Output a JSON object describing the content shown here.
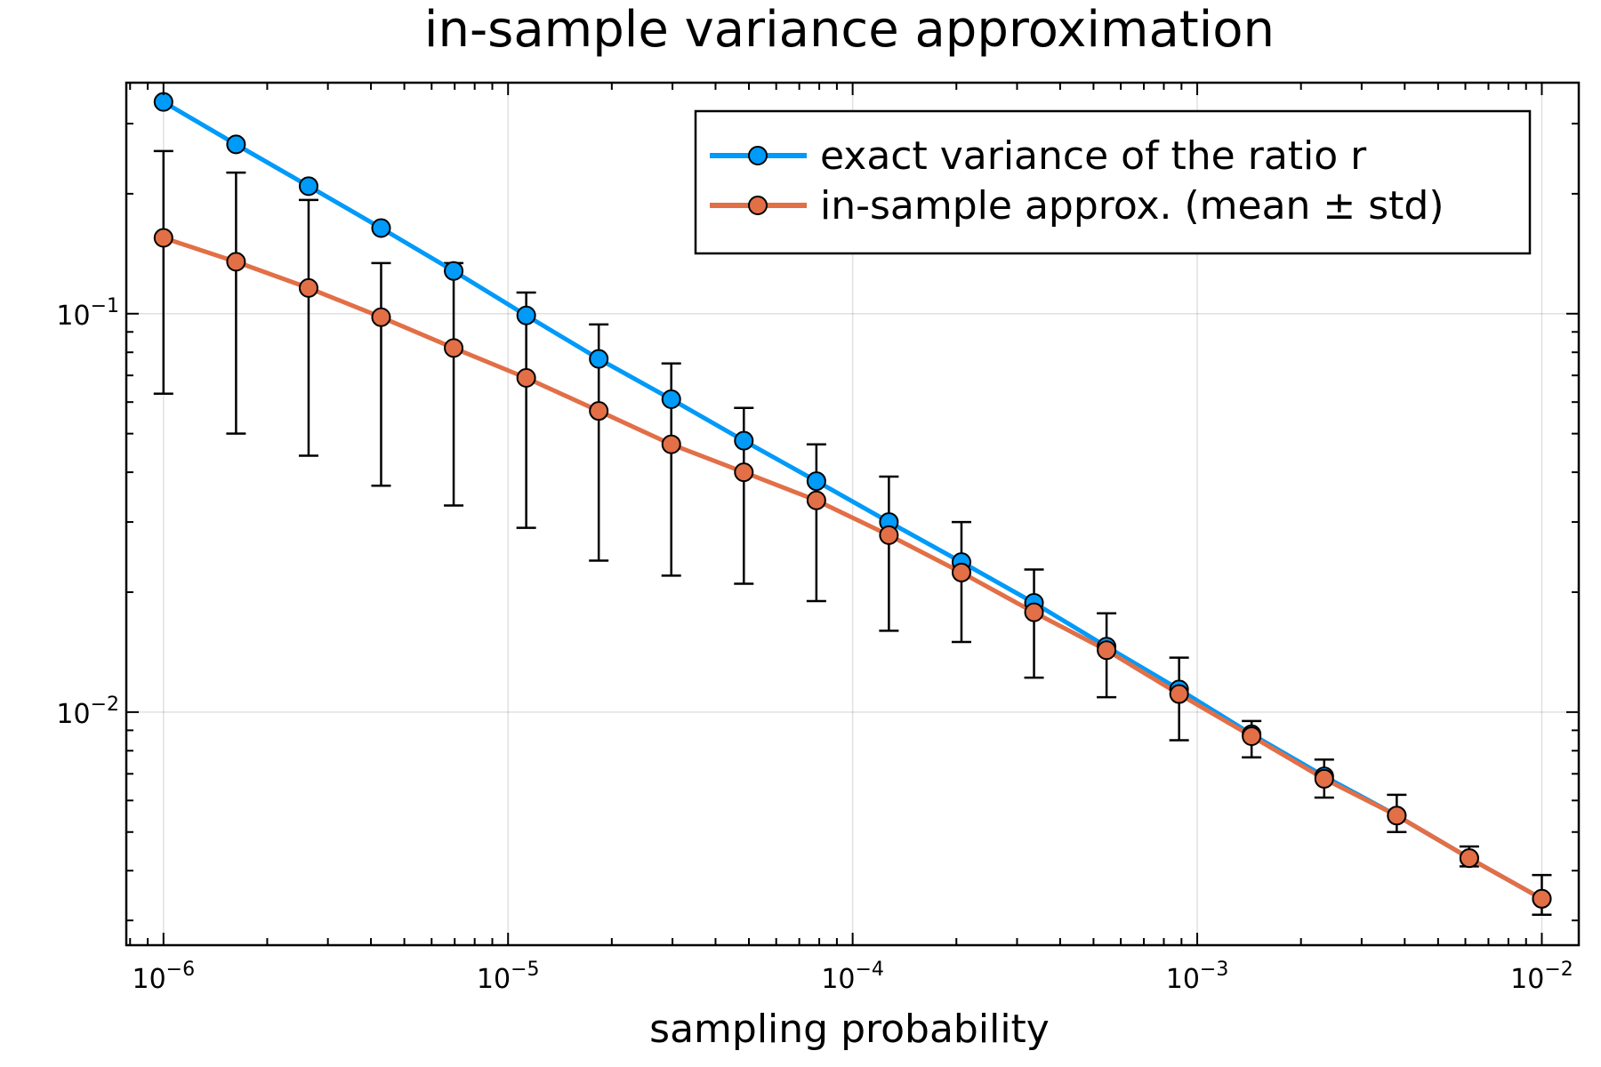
{
  "chart_data": {
    "type": "line",
    "title": "in-sample variance approximation",
    "xlabel": "sampling probability",
    "ylabel": "",
    "xscale": "log",
    "yscale": "log",
    "xlim": [
      7.8e-07,
      0.0128
    ],
    "ylim": [
      0.0026,
      0.38
    ],
    "grid": true,
    "legend_position": "top-right",
    "x_ticks": [
      {
        "base": "10",
        "exp": "−6",
        "value": 1e-06
      },
      {
        "base": "10",
        "exp": "−5",
        "value": 1e-05
      },
      {
        "base": "10",
        "exp": "−4",
        "value": 0.0001
      },
      {
        "base": "10",
        "exp": "−3",
        "value": 0.001
      },
      {
        "base": "10",
        "exp": "−2",
        "value": 0.01
      }
    ],
    "y_ticks": [
      {
        "base": "10",
        "exp": "−2",
        "value": 0.01
      },
      {
        "base": "10",
        "exp": "−1",
        "value": 0.1
      }
    ],
    "x": [
      1e-06,
      1.624e-06,
      2.637e-06,
      4.281e-06,
      6.952e-06,
      1.129e-05,
      1.833e-05,
      2.976e-05,
      4.833e-05,
      7.848e-05,
      0.0001274,
      0.0002069,
      0.000336,
      0.0005456,
      0.0008859,
      0.001438,
      0.002336,
      0.003793,
      0.006158,
      0.01
    ],
    "series": [
      {
        "name": "exact variance of the ratio r",
        "color": "#009af9",
        "values": [
          0.34,
          0.266,
          0.209,
          0.164,
          0.128,
          0.099,
          0.077,
          0.061,
          0.048,
          0.038,
          0.03,
          0.0238,
          0.0188,
          0.0146,
          0.0114,
          0.0088,
          0.0069,
          0.0055,
          0.0043,
          0.0034
        ]
      },
      {
        "name": "in-sample approx. (mean ± std)",
        "color": "#e26f46",
        "values": [
          0.155,
          0.135,
          0.116,
          0.098,
          0.082,
          0.069,
          0.057,
          0.047,
          0.04,
          0.034,
          0.0278,
          0.0224,
          0.0178,
          0.0143,
          0.0111,
          0.0087,
          0.0068,
          0.0055,
          0.0043,
          0.0034
        ],
        "err_upper": [
          0.256,
          0.226,
          0.193,
          0.134,
          0.134,
          0.113,
          0.094,
          0.075,
          0.058,
          0.047,
          0.039,
          0.03,
          0.0228,
          0.0177,
          0.0137,
          0.0095,
          0.0076,
          0.0062,
          0.0046,
          0.0039
        ],
        "err_lower": [
          0.063,
          0.05,
          0.044,
          0.037,
          0.033,
          0.029,
          0.024,
          0.022,
          0.021,
          0.019,
          0.016,
          0.015,
          0.0122,
          0.0109,
          0.0085,
          0.0077,
          0.0061,
          0.005,
          0.0041,
          0.0031
        ]
      }
    ]
  }
}
